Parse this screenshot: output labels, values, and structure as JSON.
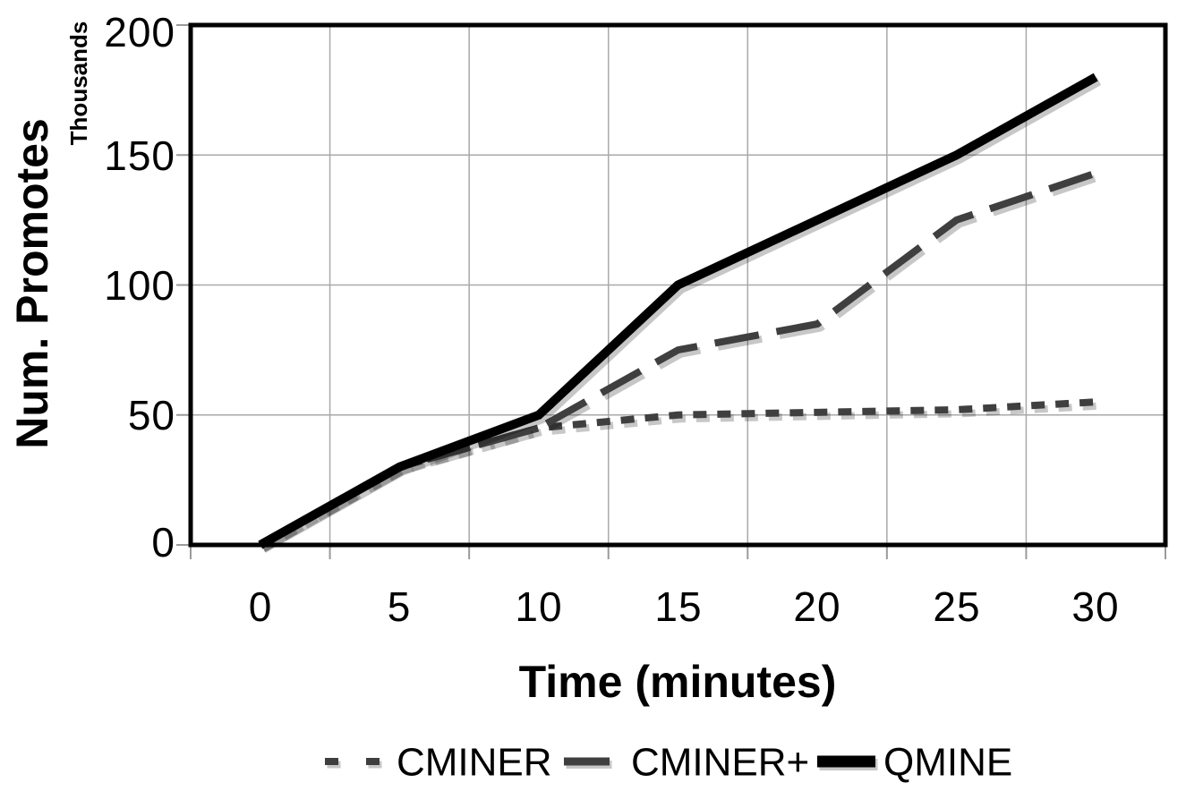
{
  "figure": {
    "background": "#ffffff"
  },
  "chart_data": {
    "type": "line",
    "xlabel": "Time (minutes)",
    "ylabel": "Num. Promotes",
    "ylabel_units": "Thousands",
    "x_tick_labels": [
      "0",
      "5",
      "10",
      "15",
      "20",
      "25",
      "30"
    ],
    "x_values": [
      0,
      5,
      10,
      15,
      20,
      25,
      30
    ],
    "y_tick_labels": [
      "0",
      "50",
      "100",
      "150",
      "200"
    ],
    "y_ticks": [
      0,
      50,
      100,
      150,
      200
    ],
    "ylim": [
      0,
      200
    ],
    "grid": true,
    "legend_position": "bottom",
    "axis_color": "#000000",
    "gridline_color": "#a9a9a9",
    "tick_color": "#9b9b9b",
    "shadow_color": "rgba(0,0,0,0.22)",
    "series": [
      {
        "name": "CMINER",
        "style": "dotted",
        "color": "#3f3f3f",
        "values": [
          0,
          30,
          45,
          50,
          51,
          52,
          55
        ]
      },
      {
        "name": "CMINER+",
        "style": "dashed",
        "color": "#3f3f3f",
        "values": [
          0,
          30,
          45,
          75,
          85,
          125,
          143
        ]
      },
      {
        "name": "QMINE",
        "style": "solid",
        "color": "#000000",
        "values": [
          0,
          30,
          50,
          100,
          125,
          150,
          180
        ]
      }
    ]
  }
}
